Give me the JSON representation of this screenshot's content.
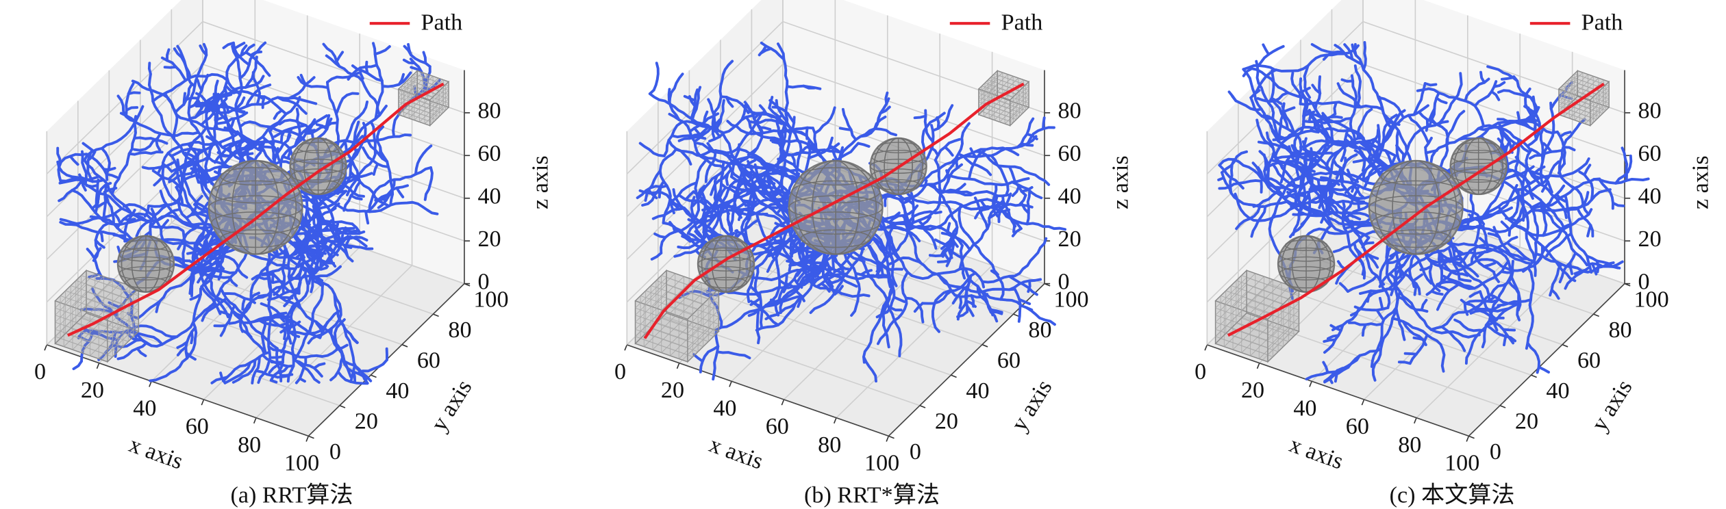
{
  "chart_data": [
    {
      "type": "path3d",
      "caption": "(a) RRT算法",
      "xlabel": "x axis",
      "ylabel": "y axis",
      "zlabel": "z axis",
      "xlim": [
        0,
        100
      ],
      "ylim": [
        0,
        100
      ],
      "zlim": [
        0,
        100
      ],
      "xticks": [
        0,
        20,
        40,
        60,
        80,
        100
      ],
      "yticks": [
        0,
        20,
        40,
        60,
        80,
        100
      ],
      "zticks": [
        0,
        20,
        40,
        60,
        80
      ],
      "spheres": [
        [
          20,
          30,
          25,
          12
        ],
        [
          50,
          50,
          50,
          20
        ],
        [
          65,
          65,
          65,
          12
        ]
      ],
      "cubes": [
        [
          2,
          2,
          0,
          20
        ],
        [
          82,
          88,
          80,
          12
        ]
      ],
      "series": [
        {
          "name": "Path",
          "color": "#e8212b",
          "x": [
            5,
            12,
            20,
            28,
            35,
            42,
            50,
            58,
            66,
            74,
            80,
            86,
            95
          ],
          "y": [
            5,
            10,
            18,
            25,
            33,
            40,
            48,
            56,
            64,
            70,
            78,
            86,
            95
          ],
          "z": [
            3,
            8,
            14,
            20,
            28,
            36,
            45,
            55,
            64,
            72,
            80,
            88,
            95
          ]
        }
      ]
    },
    {
      "type": "path3d",
      "caption": "(b) RRT*算法",
      "xlabel": "x axis",
      "ylabel": "y axis",
      "zlabel": "z axis",
      "xlim": [
        0,
        100
      ],
      "ylim": [
        0,
        100
      ],
      "zlim": [
        0,
        100
      ],
      "xticks": [
        0,
        20,
        40,
        60,
        80,
        100
      ],
      "yticks": [
        0,
        20,
        40,
        60,
        80,
        100
      ],
      "zticks": [
        0,
        20,
        40,
        60,
        80
      ],
      "spheres": [
        [
          20,
          30,
          25,
          12
        ],
        [
          50,
          50,
          50,
          20
        ],
        [
          65,
          65,
          65,
          12
        ]
      ],
      "cubes": [
        [
          2,
          2,
          0,
          20
        ],
        [
          82,
          88,
          80,
          12
        ]
      ],
      "series": [
        {
          "name": "Path",
          "color": "#e8212b",
          "x": [
            5,
            8,
            14,
            22,
            32,
            42,
            52,
            62,
            70,
            78,
            86,
            95
          ],
          "y": [
            3,
            10,
            20,
            28,
            36,
            44,
            52,
            60,
            68,
            76,
            86,
            95
          ],
          "z": [
            3,
            12,
            22,
            30,
            38,
            46,
            54,
            62,
            70,
            78,
            88,
            95
          ]
        }
      ]
    },
    {
      "type": "path3d",
      "caption": "(c) 本文算法",
      "xlabel": "x axis",
      "ylabel": "y axis",
      "zlabel": "z axis",
      "xlim": [
        0,
        100
      ],
      "ylim": [
        0,
        100
      ],
      "zlim": [
        0,
        100
      ],
      "xticks": [
        0,
        20,
        40,
        60,
        80,
        100
      ],
      "yticks": [
        0,
        20,
        40,
        60,
        80,
        100
      ],
      "zticks": [
        0,
        20,
        40,
        60,
        80
      ],
      "spheres": [
        [
          20,
          30,
          25,
          12
        ],
        [
          50,
          50,
          50,
          20
        ],
        [
          65,
          65,
          65,
          12
        ]
      ],
      "cubes": [
        [
          2,
          2,
          0,
          20
        ],
        [
          82,
          88,
          80,
          12
        ]
      ],
      "series": [
        {
          "name": "Path",
          "color": "#e8212b",
          "x": [
            5,
            14,
            24,
            34,
            44,
            54,
            64,
            74,
            84,
            95
          ],
          "y": [
            5,
            12,
            20,
            30,
            40,
            50,
            60,
            70,
            82,
            95
          ],
          "z": [
            3,
            10,
            18,
            28,
            40,
            52,
            62,
            72,
            84,
            95
          ]
        }
      ]
    }
  ]
}
